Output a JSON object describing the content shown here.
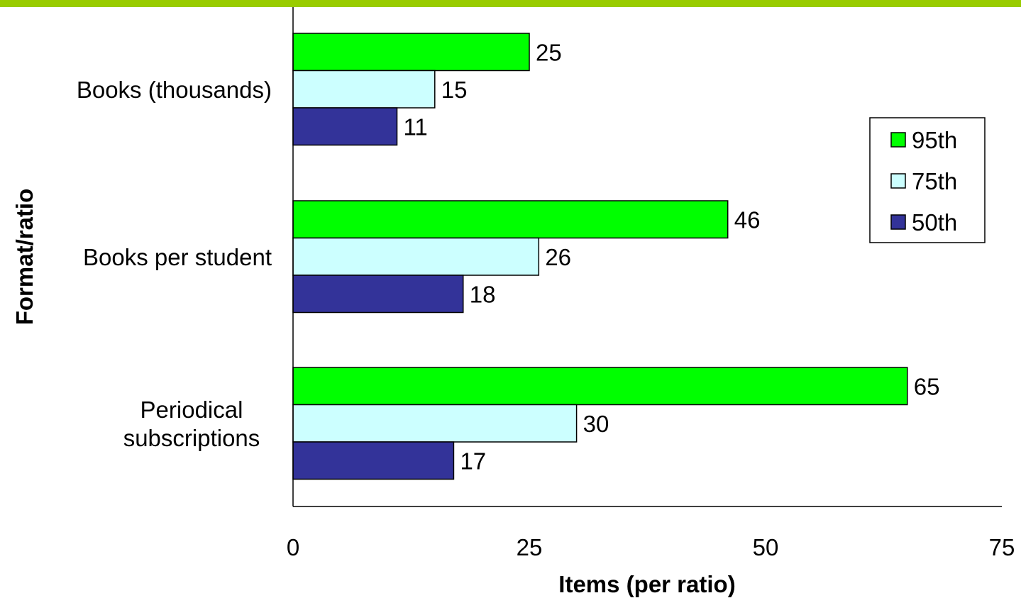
{
  "accent_color": "#99cc00",
  "chart_data": {
    "type": "bar",
    "orientation": "horizontal",
    "categories": [
      [
        "Books (thousands)"
      ],
      [
        "Books per student"
      ],
      [
        "Periodical",
        "subscriptions"
      ]
    ],
    "series": [
      {
        "name": "95th",
        "color": "#00ff00",
        "values": [
          25,
          46,
          65
        ]
      },
      {
        "name": "75th",
        "color": "#ccffff",
        "values": [
          15,
          26,
          30
        ]
      },
      {
        "name": "50th",
        "color": "#333399",
        "values": [
          11,
          18,
          17
        ]
      }
    ],
    "xlabel": "Items (per ratio)",
    "ylabel": "Format/ratio",
    "xlim": [
      0,
      75
    ],
    "xticks": [
      "0",
      "25",
      "50",
      "75"
    ],
    "grid": false,
    "legend_position": "right"
  }
}
